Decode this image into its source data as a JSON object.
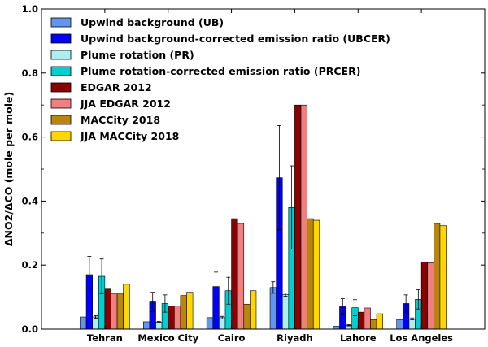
{
  "chart_data": {
    "type": "bar",
    "title": "",
    "xlabel": "",
    "ylabel": "ΔNO2/ΔCO (mole per mole)",
    "ylim": [
      0,
      1.0
    ],
    "yticks": [
      "0.0",
      "0.2",
      "0.4",
      "0.6",
      "0.8",
      "1.0"
    ],
    "grid": false,
    "legend_position": "top-left",
    "categories": [
      "Tehran",
      "Mexico City",
      "Cairo",
      "Riyadh",
      "Lahore",
      "Los Angeles"
    ],
    "series": [
      {
        "name": "Upwind background (UB)",
        "color": "#6495ED",
        "values": [
          0.038,
          0.023,
          0.036,
          0.13,
          0.009,
          0.03
        ],
        "errors": [
          0.0,
          0.0,
          0.0,
          0.018,
          0.0,
          0.0
        ]
      },
      {
        "name": "Upwind background-corrected emission ratio (UBCER)",
        "color": "#0000FF",
        "values": [
          0.17,
          0.085,
          0.133,
          0.473,
          0.07,
          0.08
        ],
        "errors": [
          0.057,
          0.03,
          0.045,
          0.163,
          0.025,
          0.027
        ]
      },
      {
        "name": "Plume rotation (PR)",
        "color": "#AFEEEE",
        "values": [
          0.038,
          0.022,
          0.036,
          0.108,
          0.012,
          0.032
        ],
        "errors": [
          0.004,
          0.002,
          0.004,
          0.005,
          0.002,
          0.003
        ]
      },
      {
        "name": "Plume rotation-corrected emission ratio (PRCER)",
        "color": "#00CED1",
        "values": [
          0.165,
          0.08,
          0.12,
          0.38,
          0.067,
          0.093
        ],
        "errors": [
          0.054,
          0.027,
          0.042,
          0.13,
          0.025,
          0.03
        ]
      },
      {
        "name": "EDGAR 2012",
        "color": "#8B0000",
        "values": [
          0.125,
          0.072,
          0.345,
          0.7,
          0.053,
          0.21
        ],
        "errors": null
      },
      {
        "name": "JJA EDGAR 2012",
        "color": "#F08080",
        "values": [
          0.11,
          0.072,
          0.33,
          0.7,
          0.066,
          0.207
        ],
        "errors": null
      },
      {
        "name": "MACCity 2018",
        "color": "#B8860B",
        "values": [
          0.11,
          0.105,
          0.078,
          0.345,
          0.03,
          0.33
        ],
        "errors": null
      },
      {
        "name": "JJA MACCity 2018",
        "color": "#FFD700",
        "values": [
          0.14,
          0.115,
          0.12,
          0.34,
          0.048,
          0.323
        ],
        "errors": null
      }
    ]
  }
}
